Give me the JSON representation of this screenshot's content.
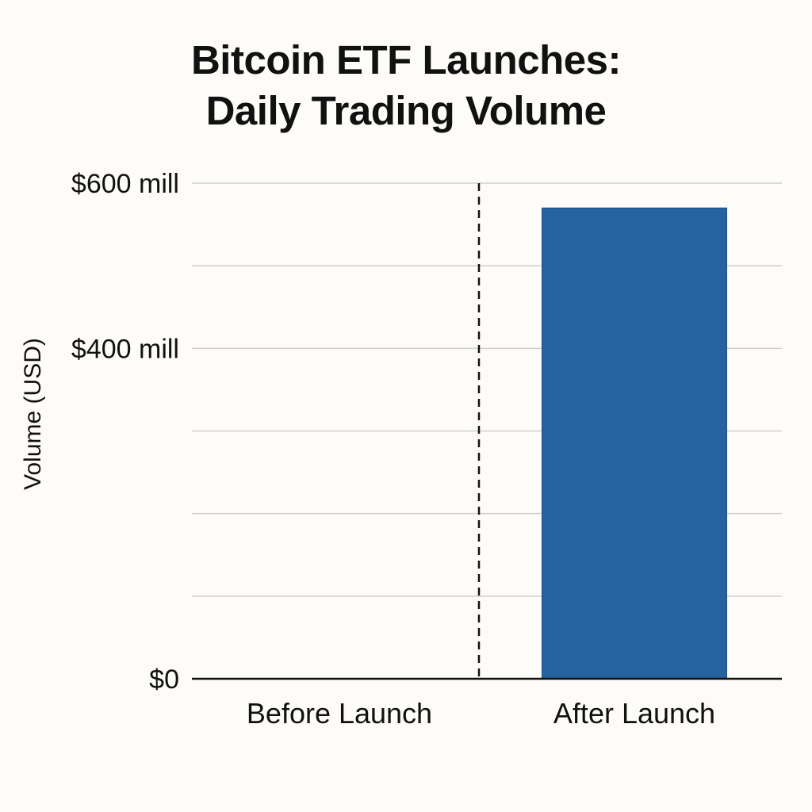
{
  "chart_data": {
    "type": "bar",
    "title_lines": [
      "Bitcoin ETF Launches:",
      "Daily Trading Volume"
    ],
    "xlabel": "",
    "ylabel": "Volume (USD)",
    "categories": [
      "Before Launch",
      "After Launch"
    ],
    "values": [
      0,
      570
    ],
    "unit": "million USD",
    "ylim": [
      0,
      600
    ],
    "y_gridlines": [
      0,
      100,
      200,
      300,
      400,
      500,
      600
    ],
    "y_tick_labels": [
      {
        "value": 600,
        "label": "$600 mill"
      },
      {
        "value": 400,
        "label": "$400 mill"
      },
      {
        "value": 0,
        "label": "$0"
      }
    ],
    "launch_divider": "dashed vertical line between categories",
    "grid": true,
    "legend": "none",
    "bar_color": "#2463a0"
  }
}
